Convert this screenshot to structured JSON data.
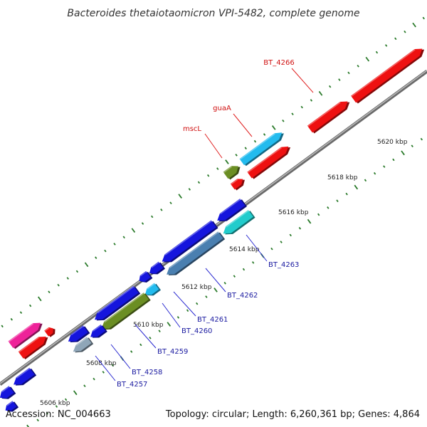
{
  "title": "Bacteroides thetaiotaomicron VPI-5482, complete genome",
  "footer": {
    "accession": "Accession: NC_004663",
    "summary": "Topology: circular; Length: 6,260,361 bp; Genes: 4,864"
  },
  "colors": {
    "backbone": "#8f8f8f",
    "tick": "#2a7a2a",
    "label_forward": "#d01010",
    "label_reverse": "#1a1aa0",
    "leader_forward": "#e02020",
    "leader_reverse": "#2a2ad0"
  },
  "scale_marks": [
    {
      "label": "5606 kbp"
    },
    {
      "label": "5608 kbp"
    },
    {
      "label": "5610 kbp"
    },
    {
      "label": "5612 kbp"
    },
    {
      "label": "5614 kbp"
    },
    {
      "label": "5616 kbp"
    },
    {
      "label": "5618 kbp"
    },
    {
      "label": "5620 kbp"
    }
  ],
  "gene_labels": [
    {
      "id": "BT_4266",
      "text": "BT_4266",
      "strand": "forward"
    },
    {
      "id": "guaA",
      "text": "guaA",
      "strand": "forward"
    },
    {
      "id": "mscL",
      "text": "mscL",
      "strand": "forward"
    },
    {
      "id": "BT_4263",
      "text": "BT_4263",
      "strand": "reverse"
    },
    {
      "id": "BT_4262",
      "text": "BT_4262",
      "strand": "reverse"
    },
    {
      "id": "BT_4261",
      "text": "BT_4261",
      "strand": "reverse"
    },
    {
      "id": "BT_4260",
      "text": "BT_4260",
      "strand": "reverse"
    },
    {
      "id": "BT_4259",
      "text": "BT_4259",
      "strand": "reverse"
    },
    {
      "id": "BT_4258",
      "text": "BT_4258",
      "strand": "reverse"
    },
    {
      "id": "BT_4257",
      "text": "BT_4257",
      "strand": "reverse"
    }
  ],
  "features": [
    {
      "name": "BT_4266",
      "color": "#ee1111",
      "strand": "forward"
    },
    {
      "name": "BT_4266-part",
      "color": "#ee1111",
      "strand": "forward"
    },
    {
      "name": "guaA",
      "color": "#22bbee",
      "strand": "forward"
    },
    {
      "name": "guaA-partner",
      "color": "#ee1111",
      "strand": "forward"
    },
    {
      "name": "mscL",
      "color": "#6b8e23",
      "strand": "forward"
    },
    {
      "name": "mscL-partner",
      "color": "#ee1111",
      "strand": "forward"
    },
    {
      "name": "pink-gene",
      "color": "#ee2299",
      "strand": "forward"
    },
    {
      "name": "red-gene-lower",
      "color": "#ee1111",
      "strand": "forward"
    },
    {
      "name": "red-gene-small",
      "color": "#ee1111",
      "strand": "forward"
    },
    {
      "name": "BT_4263",
      "color": "#22cccc",
      "strand": "reverse"
    },
    {
      "name": "blue-top",
      "color": "#1515dd",
      "strand": "reverse"
    },
    {
      "name": "BT_4262",
      "color": "#4a7fb0",
      "strand": "reverse"
    },
    {
      "name": "blue-long",
      "color": "#1515dd",
      "strand": "reverse"
    },
    {
      "name": "blue-small-a",
      "color": "#1515dd",
      "strand": "reverse"
    },
    {
      "name": "blue-small-b",
      "color": "#1515dd",
      "strand": "reverse"
    },
    {
      "name": "BT_4261",
      "color": "#22bbee",
      "strand": "reverse"
    },
    {
      "name": "blue-mid",
      "color": "#1515dd",
      "strand": "reverse"
    },
    {
      "name": "BT_4260",
      "color": "#6b8e23",
      "strand": "reverse"
    },
    {
      "name": "BT_4259",
      "color": "#1515dd",
      "strand": "reverse"
    },
    {
      "name": "BT_4258",
      "color": "#1515dd",
      "strand": "reverse"
    },
    {
      "name": "BT_4257",
      "color": "#8fa6b8",
      "strand": "reverse"
    },
    {
      "name": "blue-lower-left",
      "color": "#1515dd",
      "strand": "reverse"
    },
    {
      "name": "blue-bottom",
      "color": "#1515dd",
      "strand": "reverse"
    },
    {
      "name": "blue-corner",
      "color": "#1515dd",
      "strand": "reverse"
    }
  ]
}
